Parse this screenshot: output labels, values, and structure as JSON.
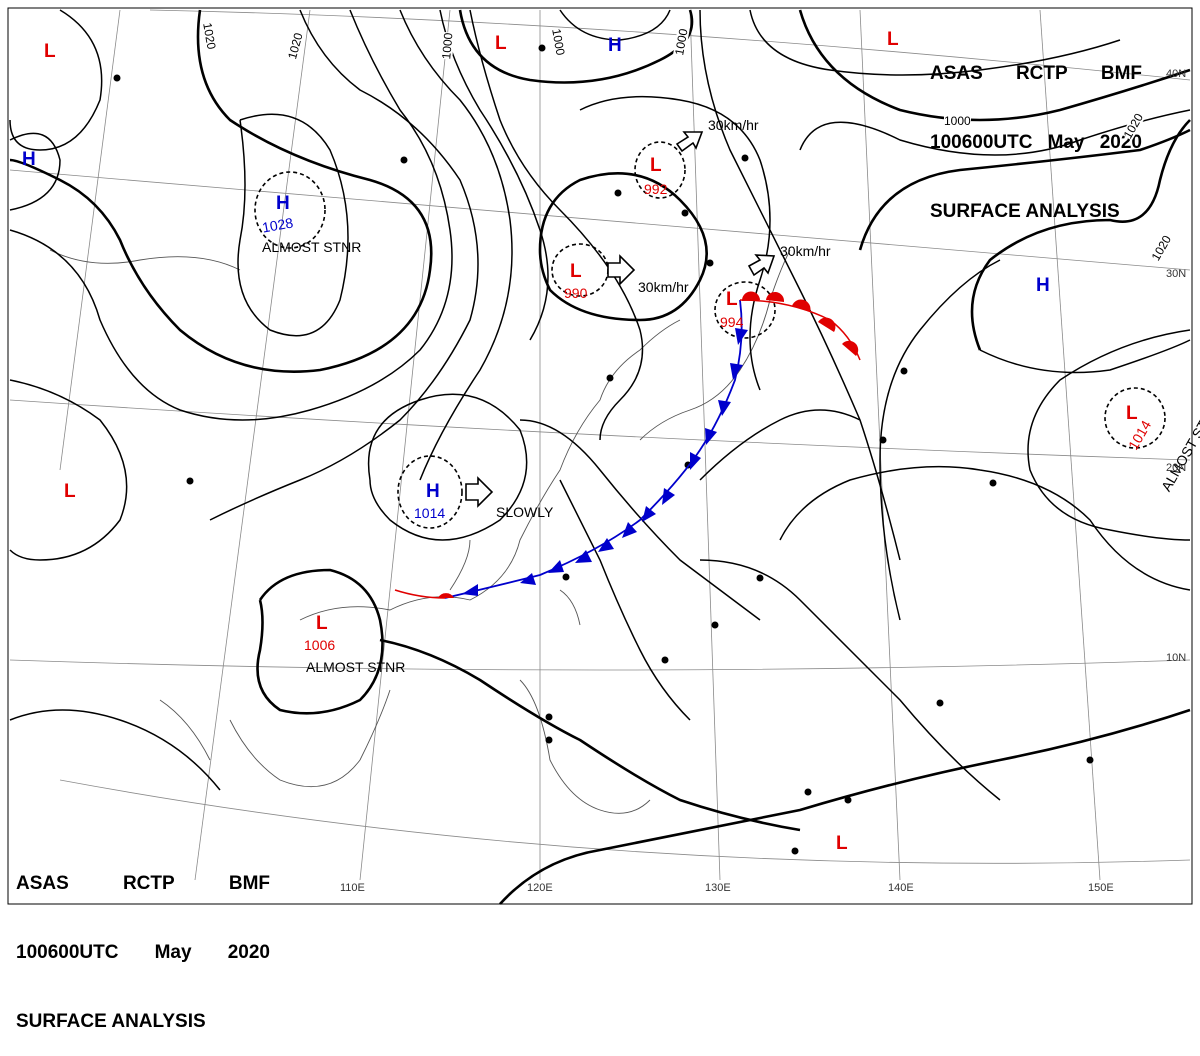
{
  "header": {
    "line1": [
      "ASAS",
      "RCTP",
      "BMF"
    ],
    "line2": [
      "100600UTC",
      "May",
      "2020"
    ],
    "line3": "SURFACE  ANALYSIS"
  },
  "isobar_labels": [
    "1020",
    "1020",
    "1000",
    "1000",
    "1000",
    "1000",
    "1020",
    "1020"
  ],
  "pressure_centers": [
    {
      "symbol": "H",
      "value": "1028",
      "note": "ALMOST STNR",
      "color": "#0000cc"
    },
    {
      "symbol": "H",
      "value": "1014",
      "note": "",
      "color": "#0000cc"
    },
    {
      "symbol": "L",
      "value": "990",
      "note": "",
      "color": "#e00000"
    },
    {
      "symbol": "L",
      "value": "992",
      "note": "",
      "color": "#e00000"
    },
    {
      "symbol": "L",
      "value": "994",
      "note": "",
      "color": "#e00000"
    },
    {
      "symbol": "L",
      "value": "1006",
      "note": "ALMOST STNR",
      "color": "#e00000"
    },
    {
      "symbol": "L",
      "value": "1014",
      "note": "ALMOST STNR",
      "color": "#e00000"
    }
  ],
  "extra_symbols": [
    "L",
    "L",
    "L",
    "L",
    "H",
    "H",
    "H"
  ],
  "motion_labels": [
    "30km/hr",
    "30km/hr",
    "30km/hr",
    "SLOWLY"
  ],
  "graticule_labels": {
    "lon": [
      "110E",
      "120E",
      "130E",
      "140E",
      "150E"
    ],
    "lat": [
      "40N",
      "30N",
      "20N",
      "10N"
    ]
  },
  "fronts": {
    "warm_color": "#e00000",
    "cold_color": "#0000cc"
  }
}
